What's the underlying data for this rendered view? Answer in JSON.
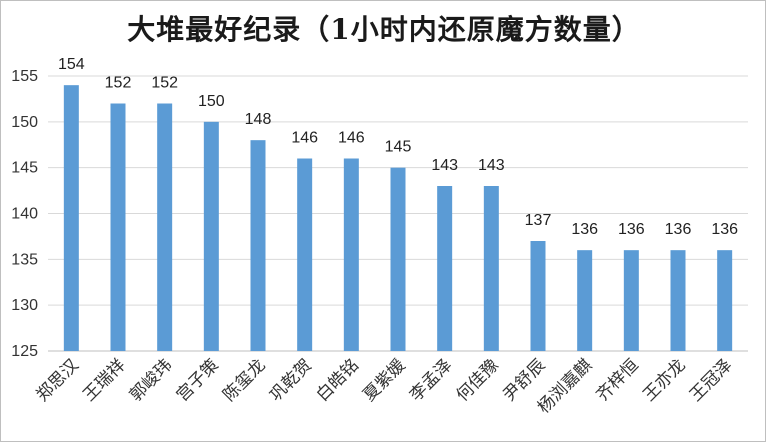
{
  "chart_data": {
    "type": "bar",
    "title": "大堆最好纪录（1小时内还原魔方数量）",
    "categories": [
      "郑思汉",
      "王瑞祥",
      "郭峻玮",
      "宫子策",
      "陈玺龙",
      "巩乾贺",
      "白皓铭",
      "夏紫媛",
      "李孟泽",
      "何佳豫",
      "尹舒辰",
      "杨浏嘉麒",
      "齐梓恒",
      "王亦龙",
      "王冠泽"
    ],
    "values": [
      154,
      152,
      152,
      150,
      148,
      146,
      146,
      145,
      143,
      143,
      137,
      136,
      136,
      136,
      136
    ],
    "ylim": [
      125,
      155
    ],
    "yticks": [
      125,
      130,
      135,
      140,
      145,
      150,
      155
    ],
    "xlabel": "",
    "ylabel": "",
    "grid": true,
    "colors": {
      "bar": "#5b9bd5",
      "grid": "#d9d9d9",
      "axis": "#bfbfbf"
    }
  }
}
